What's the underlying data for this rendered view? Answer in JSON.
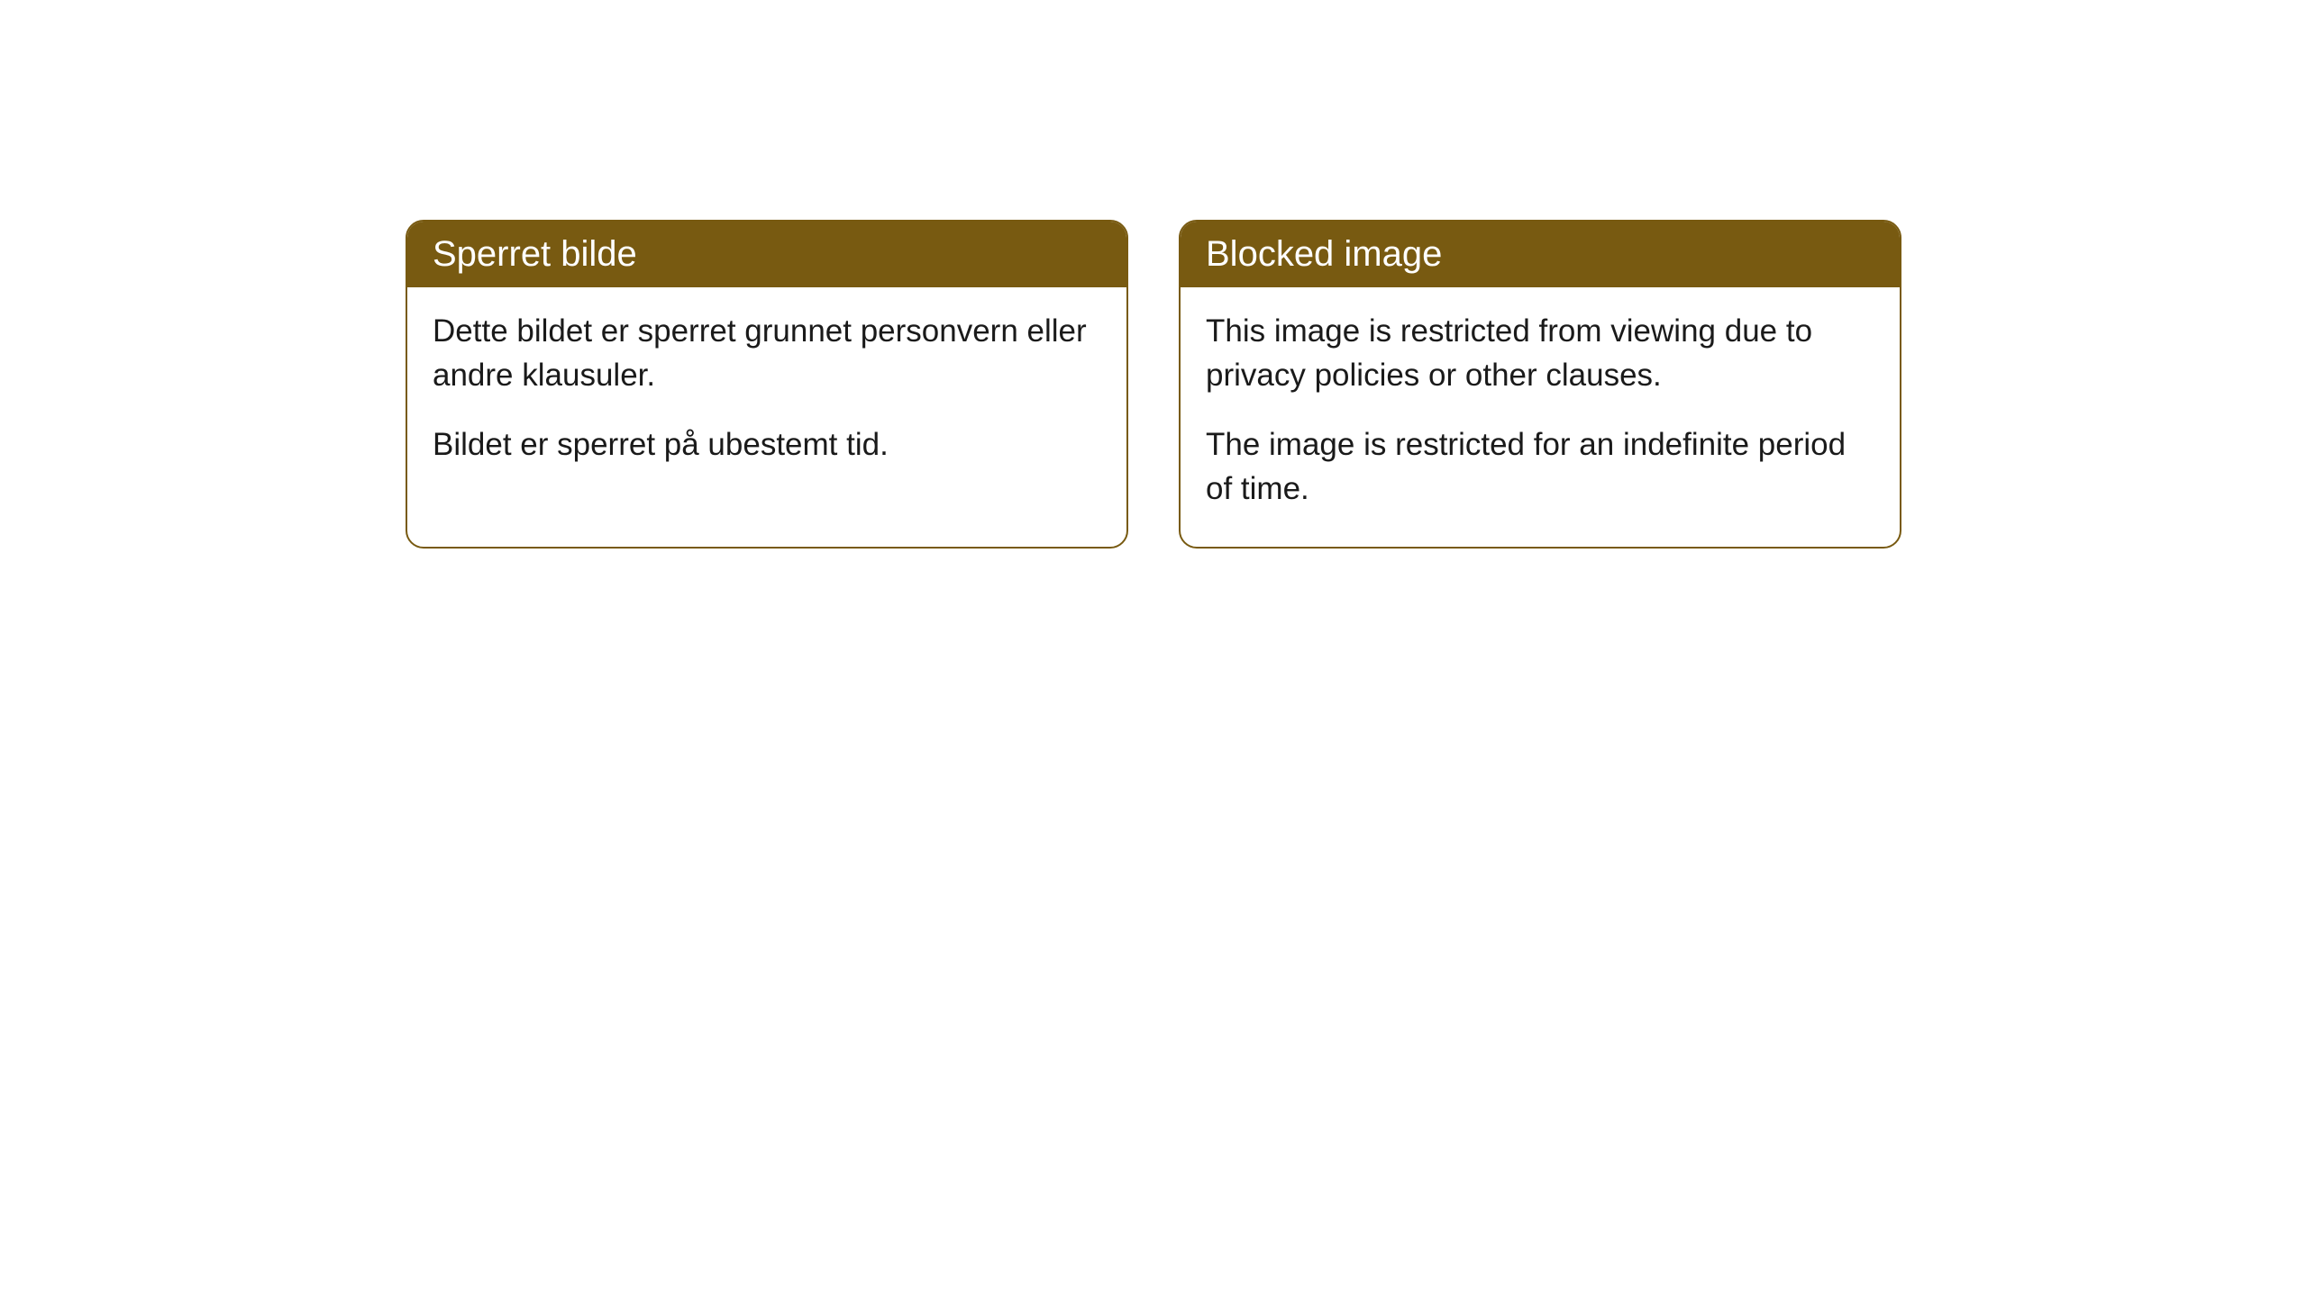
{
  "cards": [
    {
      "title": "Sperret bilde",
      "paragraph1": "Dette bildet er sperret grunnet personvern eller andre klausuler.",
      "paragraph2": "Bildet er sperret på ubestemt tid."
    },
    {
      "title": "Blocked image",
      "paragraph1": "This image is restricted from viewing due to privacy policies or other clauses.",
      "paragraph2": "The image is restricted for an indefinite period of time."
    }
  ],
  "styling": {
    "header_background": "#785a11",
    "header_text_color": "#ffffff",
    "border_color": "#785a11",
    "body_background": "#ffffff",
    "body_text_color": "#1a1a1a",
    "border_radius": 20,
    "title_fontsize": 40,
    "body_fontsize": 35
  }
}
